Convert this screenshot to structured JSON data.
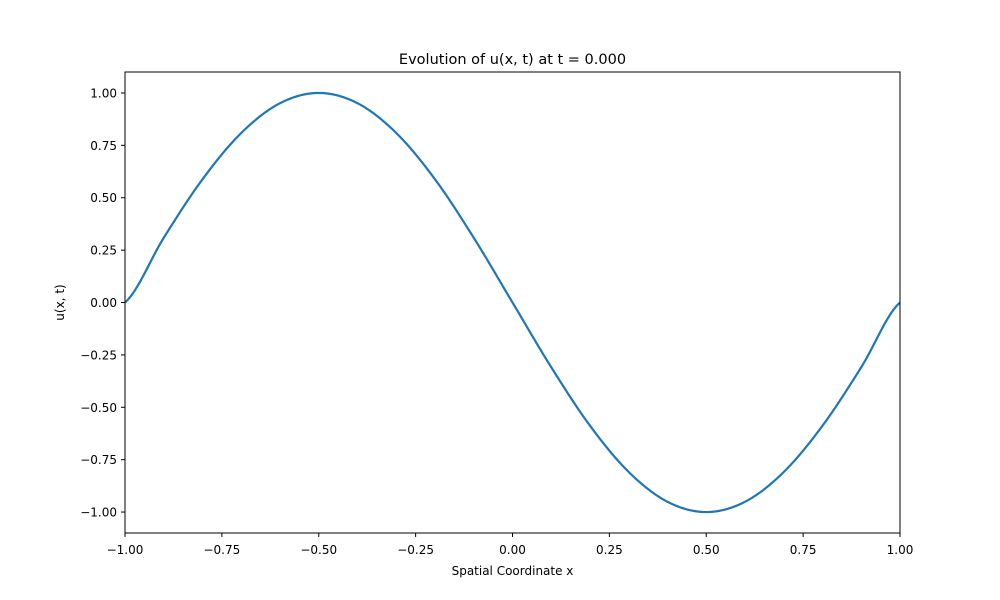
{
  "chart_data": {
    "type": "line",
    "title": "Evolution of u(x, t) at t = 0.000",
    "xlabel": "Spatial Coordinate x",
    "ylabel": "u(x, t)",
    "xlim": [
      -1.0,
      1.0
    ],
    "ylim": [
      -1.1,
      1.1
    ],
    "grid": false,
    "xticks": [
      -1.0,
      -0.75,
      -0.5,
      -0.25,
      0.0,
      0.25,
      0.5,
      0.75,
      1.0
    ],
    "xtick_labels": [
      "−1.00",
      "−0.75",
      "−0.50",
      "−0.25",
      "0.00",
      "0.25",
      "0.50",
      "0.75",
      "1.00"
    ],
    "yticks": [
      1.0,
      0.75,
      0.5,
      0.25,
      0.0,
      -0.25,
      -0.5,
      -0.75,
      -1.0
    ],
    "ytick_labels": [
      "1.00",
      "0.75",
      "0.50",
      "0.25",
      "0.00",
      "−0.25",
      "−0.50",
      "−0.75",
      "−1.00"
    ],
    "series": [
      {
        "color": "#1f77b4",
        "x": [
          -1.0,
          -0.9,
          -0.8,
          -0.7,
          -0.6,
          -0.5,
          -0.4,
          -0.3,
          -0.2,
          -0.1,
          0.0,
          0.1,
          0.2,
          0.3,
          0.4,
          0.5,
          0.6,
          0.7,
          0.8,
          0.9,
          1.0
        ],
        "values": [
          0.0,
          0.309,
          0.588,
          0.809,
          0.951,
          1.0,
          0.951,
          0.809,
          0.588,
          0.309,
          0.0,
          -0.309,
          -0.588,
          -0.809,
          -0.951,
          -1.0,
          -0.951,
          -0.809,
          -0.588,
          -0.309,
          0.0
        ]
      }
    ]
  }
}
